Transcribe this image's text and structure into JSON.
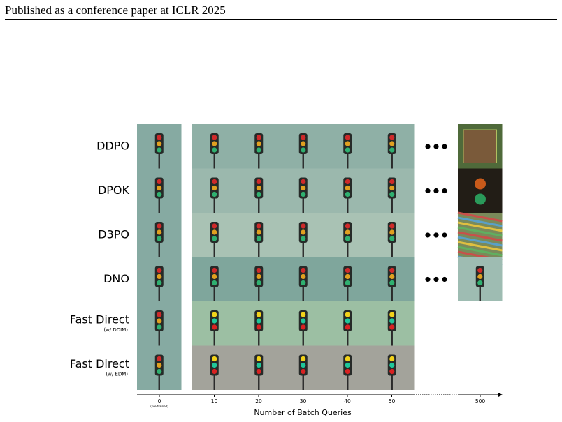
{
  "header": {
    "text": "Published as a conference paper at ICLR 2025"
  },
  "figure": {
    "rows": [
      {
        "label": "DDPO"
      },
      {
        "label": "DPOK"
      },
      {
        "label": "D3PO"
      },
      {
        "label": "DNO"
      },
      {
        "label": "Fast Direct",
        "note": "(w/ DDIM)"
      },
      {
        "label": "Fast Direct",
        "note": "(w/ EDM)"
      }
    ],
    "x_ticks": [
      "0",
      "10",
      "20",
      "30",
      "40",
      "50",
      "500"
    ],
    "x_tick_note": "(pre-trained)",
    "x_label": "Number of Batch Queries"
  }
}
